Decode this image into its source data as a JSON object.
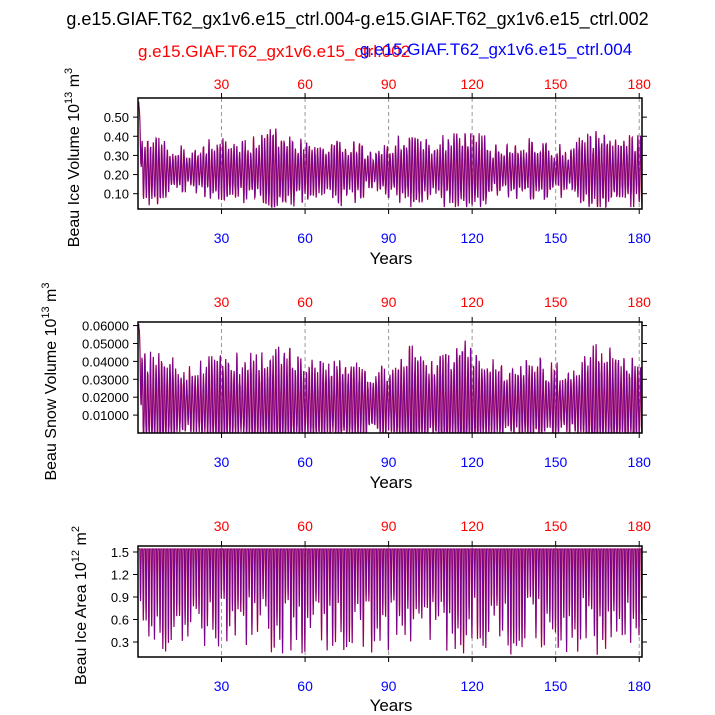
{
  "title": "g.e15.GIAF.T62_gx1v6.e15_ctrl.004-g.e15.GIAF.T62_gx1v6.e15_ctrl.002",
  "legend": {
    "red_label": "g.e15.GIAF.T62_gx1v6.e15_ctrl.002",
    "blue_label": "g.e15.GIAF.T62_gx1v6.e15_ctrl.004"
  },
  "colors": {
    "red": "#ff0000",
    "blue": "#0000ff",
    "mix": "#c8003c",
    "axis": "#000000",
    "grid": "#999999"
  },
  "chart_data": [
    {
      "type": "line",
      "name": "beau-ice-volume",
      "ylabel_main": "Beau Ice Volume 10",
      "ylabel_exp": "13",
      "ylabel_unit": " m",
      "ylabel_unit_exp": "3",
      "xlabel": "Years",
      "xlim": [
        0,
        181
      ],
      "ylim": [
        0.02,
        0.6
      ],
      "xticks": [
        30,
        60,
        90,
        120,
        150,
        180
      ],
      "xtick_labels": [
        "30",
        "60",
        "90",
        "120",
        "150",
        "180"
      ],
      "yticks": [
        0.1,
        0.2,
        0.3,
        0.4,
        0.5
      ],
      "ytick_labels": [
        "0.10",
        "0.20",
        "0.30",
        "0.40",
        "0.50"
      ],
      "grid_x": true,
      "seasonal": {
        "base": 0.22,
        "amp_min": 0.06,
        "amp_max": 0.2,
        "initial_peak": 0.58,
        "floor": 0.03
      },
      "series": [
        {
          "name": "g.e15.GIAF.T62_gx1v6.e15_ctrl.002",
          "color": "red"
        },
        {
          "name": "g.e15.GIAF.T62_gx1v6.e15_ctrl.004",
          "color": "blue"
        }
      ]
    },
    {
      "type": "line",
      "name": "beau-snow-volume",
      "ylabel_main": "Beau Snow Volume 10",
      "ylabel_exp": "13",
      "ylabel_unit": " m",
      "ylabel_unit_exp": "3",
      "xlabel": "Years",
      "xlim": [
        0,
        181
      ],
      "ylim": [
        0.0,
        0.062
      ],
      "xticks": [
        30,
        60,
        90,
        120,
        150,
        180
      ],
      "xtick_labels": [
        "30",
        "60",
        "90",
        "120",
        "150",
        "180"
      ],
      "yticks": [
        0.01,
        0.02,
        0.03,
        0.04,
        0.05,
        0.06
      ],
      "ytick_labels": [
        "0.01000",
        "0.02000",
        "0.03000",
        "0.04000",
        "0.05000",
        "0.06000"
      ],
      "grid_x": true,
      "seasonal": {
        "base": 0.0165,
        "amp_min": 0.012,
        "amp_max": 0.031,
        "initial_peak": 0.061,
        "floor": 0.0005
      },
      "series": [
        {
          "name": "g.e15.GIAF.T62_gx1v6.e15_ctrl.002",
          "color": "red"
        },
        {
          "name": "g.e15.GIAF.T62_gx1v6.e15_ctrl.004",
          "color": "blue"
        }
      ]
    },
    {
      "type": "line",
      "name": "beau-ice-area",
      "ylabel_main": "Beau Ice Area 10",
      "ylabel_exp": "12",
      "ylabel_unit": " m",
      "ylabel_unit_exp": "2",
      "xlabel": "Years",
      "xlim": [
        0,
        181
      ],
      "ylim": [
        0.1,
        1.58
      ],
      "xticks": [
        30,
        60,
        90,
        120,
        150,
        180
      ],
      "xtick_labels": [
        "30",
        "60",
        "90",
        "120",
        "150",
        "180"
      ],
      "yticks": [
        0.3,
        0.6,
        0.9,
        1.2,
        1.5
      ],
      "ytick_labels": [
        "0.3",
        "0.6",
        "0.9",
        "1.2",
        "1.5"
      ],
      "grid_x": true,
      "seasonal": {
        "top": 1.54,
        "min_low": 0.13,
        "max_low": 0.9
      },
      "series": [
        {
          "name": "g.e15.GIAF.T62_gx1v6.e15_ctrl.002",
          "color": "red"
        },
        {
          "name": "g.e15.GIAF.T62_gx1v6.e15_ctrl.004",
          "color": "blue"
        }
      ]
    }
  ]
}
